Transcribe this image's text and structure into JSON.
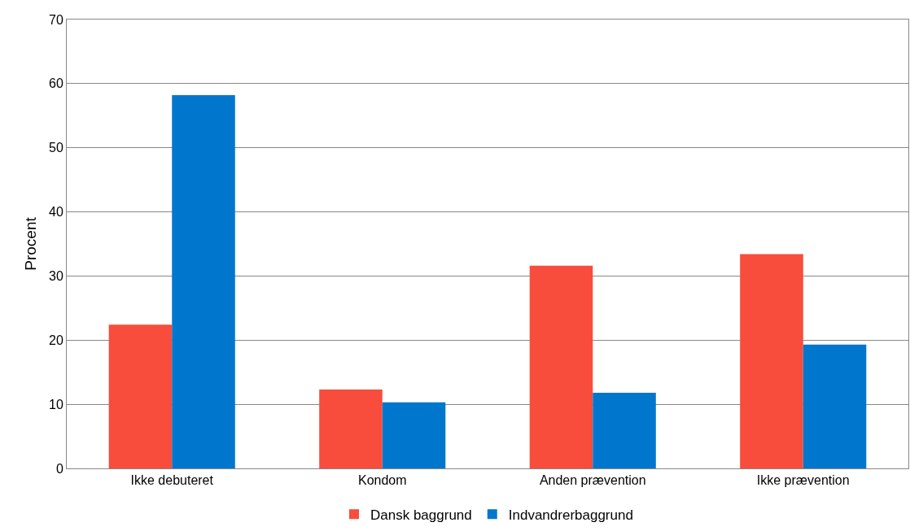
{
  "chart_data": {
    "type": "bar",
    "ylabel": "Procent",
    "categories": [
      "Ikke debuteret",
      "Kondom",
      "Anden prævention",
      "Ikke prævention"
    ],
    "series": [
      {
        "name": "Dansk baggrund",
        "color": "#f84c3c",
        "values": [
          22.4,
          12.3,
          31.6,
          33.4
        ]
      },
      {
        "name": "Indvandrerbaggrund",
        "color": "#0077cc",
        "values": [
          58.2,
          10.3,
          11.8,
          19.3
        ]
      }
    ],
    "ylim": [
      0,
      70
    ],
    "yticks": [
      0,
      10,
      20,
      30,
      40,
      50,
      60,
      70
    ],
    "grid": "y",
    "legend": "bottom"
  }
}
